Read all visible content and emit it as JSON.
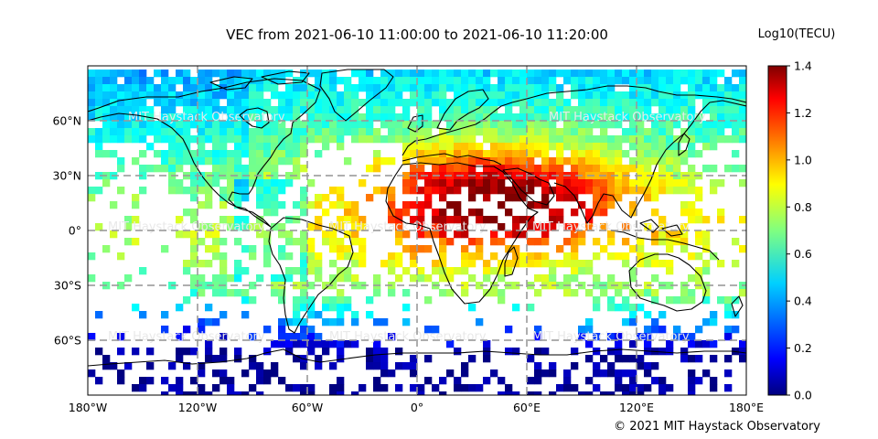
{
  "title": "VEC from 2021-06-10 11:00:00 to 2021-06-10 11:20:00",
  "colorbar": {
    "label": "Log10(TECU)",
    "min": 0.0,
    "max": 1.4,
    "ticks": [
      "0.0",
      "0.2",
      "0.4",
      "0.6",
      "0.8",
      "1.0",
      "1.2",
      "1.4"
    ],
    "colormap": [
      "#00007f",
      "#0000ff",
      "#0080ff",
      "#00ffff",
      "#80ff80",
      "#ffff00",
      "#ff8000",
      "#ff0000",
      "#7f0000"
    ]
  },
  "map": {
    "lon_range": [
      -180,
      180
    ],
    "lat_range": [
      -90,
      90
    ],
    "lon_ticks": [
      "180°W",
      "120°W",
      "60°W",
      "0°",
      "60°E",
      "120°E",
      "180°E"
    ],
    "lat_ticks": [
      "60°N",
      "30°N",
      "0°",
      "30°S",
      "60°S"
    ],
    "grid": true,
    "watermark": "MIT Haystack Observatory"
  },
  "copyright": "© 2021 MIT Haystack Observatory"
}
